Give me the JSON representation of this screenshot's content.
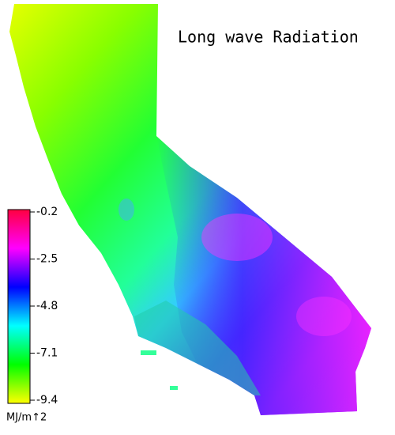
{
  "title": "Long wave Radiation",
  "colorbar": {
    "lim": [
      -9.4,
      -0.2
    ],
    "ticks": [
      -0.2,
      -2.5,
      -4.8,
      -7.1,
      -9.4
    ],
    "unit": "MJ/m↑2",
    "colors": [
      "#ffff00",
      "#00ff00",
      "#00ffff",
      "#0000ff",
      "#ff00ff",
      "#ff0040"
    ]
  }
}
